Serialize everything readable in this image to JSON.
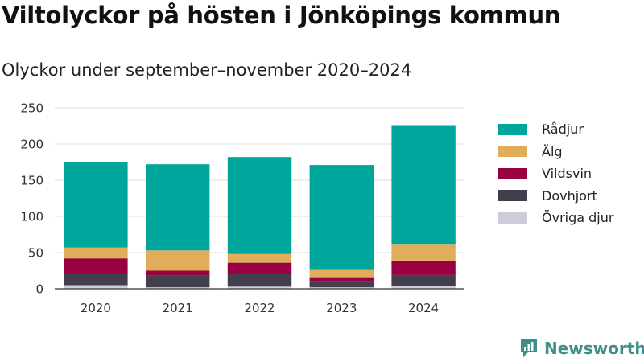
{
  "header": {
    "title": "Viltolyckor på hösten i Jönköpings kommun",
    "subtitle": "Olyckor under september–november 2020–2024"
  },
  "brand": {
    "name": "Newsworthy",
    "icon": "newsworthy-logo-icon",
    "color": "#3f8f8c"
  },
  "chart_data": {
    "type": "bar",
    "stacked": true,
    "categories": [
      "2020",
      "2021",
      "2022",
      "2023",
      "2024"
    ],
    "series": [
      {
        "name": "Övriga djur",
        "color": "#cfcbd9",
        "values": [
          5,
          2,
          3,
          2,
          4
        ]
      },
      {
        "name": "Dovhjort",
        "color": "#423f4d",
        "values": [
          16,
          16,
          18,
          9,
          15
        ]
      },
      {
        "name": "Vildsvin",
        "color": "#990042",
        "values": [
          21,
          7,
          15,
          5,
          20
        ]
      },
      {
        "name": "Älg",
        "color": "#e0ae5b",
        "values": [
          15,
          28,
          12,
          10,
          23
        ]
      },
      {
        "name": "Rådjur",
        "color": "#00a69c",
        "values": [
          118,
          119,
          134,
          145,
          163
        ]
      }
    ],
    "ylim": [
      0,
      250
    ],
    "yticks": [
      0,
      50,
      100,
      150,
      200,
      250
    ],
    "grid": true,
    "legend": "right"
  }
}
